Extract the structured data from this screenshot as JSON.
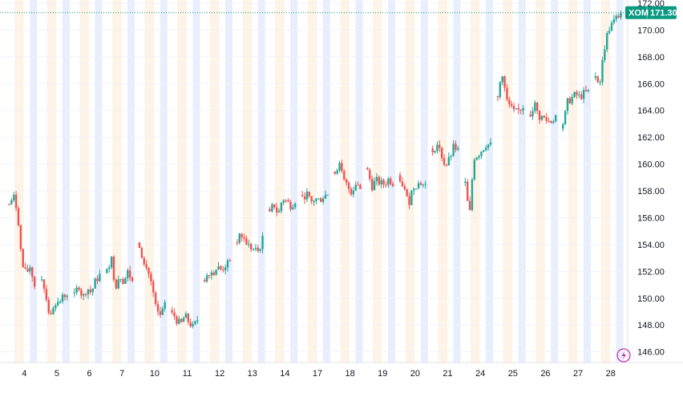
{
  "symbol": "XOM",
  "last_price_label": "171.30",
  "colors": {
    "up": "#26a69a",
    "down": "#ef5350",
    "accent": "#089981",
    "session_pre": "#fdf3e6",
    "session_post": "#e8eefc",
    "grid": "#f0f3fa",
    "axis_text": "#131722",
    "replay_icon": "#c733b1"
  },
  "icons": {
    "replay": "lightning-bolt-icon"
  },
  "chart_data": {
    "type": "candlestick",
    "title": "",
    "xlabel": "",
    "ylabel": "",
    "ylim": [
      145.2,
      172.0
    ],
    "y_ticks": [
      "146.00",
      "148.00",
      "150.00",
      "152.00",
      "154.00",
      "156.00",
      "158.00",
      "160.00",
      "162.00",
      "164.00",
      "166.00",
      "168.00",
      "170.00",
      "172.00"
    ],
    "x_ticks": [
      "4",
      "5",
      "6",
      "7",
      "10",
      "11",
      "12",
      "13",
      "14",
      "17",
      "18",
      "19",
      "20",
      "21",
      "24",
      "25",
      "26",
      "27",
      "28"
    ],
    "last_price": 171.3,
    "price_line": "dotted",
    "grid": true,
    "days": [
      {
        "label": "4",
        "path": [
          157.0,
          157.6,
          156.4,
          152.5,
          151.8,
          152.4,
          150.9
        ]
      },
      {
        "label": "5",
        "path": [
          151.5,
          150.2,
          148.4,
          149.8,
          149.6,
          150.1,
          150.4
        ]
      },
      {
        "label": "6",
        "path": [
          150.2,
          151.0,
          150.0,
          150.8,
          150.4,
          151.3,
          151.7
        ]
      },
      {
        "label": "7",
        "path": [
          152.0,
          153.1,
          150.8,
          151.8,
          151.2,
          152.0,
          151.2
        ]
      },
      {
        "label": "10",
        "path": [
          154.0,
          152.5,
          152.1,
          150.8,
          149.0,
          148.7,
          149.4
        ]
      },
      {
        "label": "11",
        "path": [
          149.0,
          148.4,
          148.0,
          148.7,
          148.2,
          147.8,
          148.4
        ]
      },
      {
        "label": "12",
        "path": [
          151.5,
          152.0,
          151.9,
          152.3,
          152.1,
          152.5,
          152.6
        ]
      },
      {
        "label": "13",
        "path": [
          154.3,
          154.7,
          154.2,
          153.8,
          153.6,
          153.5,
          154.4
        ]
      },
      {
        "label": "14",
        "path": [
          156.5,
          157.0,
          156.2,
          157.5,
          157.2,
          156.9,
          157.3
        ]
      },
      {
        "label": "17",
        "path": [
          157.5,
          157.8,
          157.1,
          157.4,
          157.3,
          157.6,
          157.8
        ]
      },
      {
        "label": "18",
        "path": [
          159.5,
          160.0,
          158.8,
          158.3,
          157.9,
          158.7,
          158.2
        ]
      },
      {
        "label": "19",
        "path": [
          159.6,
          158.3,
          158.8,
          158.6,
          158.5,
          158.9,
          158.6
        ]
      },
      {
        "label": "20",
        "path": [
          159.0,
          158.1,
          157.0,
          158.3,
          158.5,
          158.6,
          158.4
        ]
      },
      {
        "label": "21",
        "path": [
          161.0,
          161.5,
          160.8,
          159.8,
          160.4,
          161.3,
          161.0
        ]
      },
      {
        "label": "24",
        "path": [
          158.5,
          156.0,
          160.5,
          160.7,
          161.1,
          161.5,
          161.4
        ]
      },
      {
        "label": "25",
        "path": [
          165.0,
          167.0,
          164.8,
          164.2,
          163.8,
          164.0,
          164.3
        ]
      },
      {
        "label": "26",
        "path": [
          163.8,
          164.5,
          163.5,
          163.5,
          163.2,
          163.2,
          163.6
        ]
      },
      {
        "label": "27",
        "path": [
          162.7,
          164.6,
          164.9,
          165.2,
          165.0,
          165.3,
          165.4
        ]
      },
      {
        "label": "28",
        "path": [
          166.5,
          166.0,
          168.5,
          170.0,
          170.5,
          170.9,
          171.3
        ]
      }
    ]
  }
}
